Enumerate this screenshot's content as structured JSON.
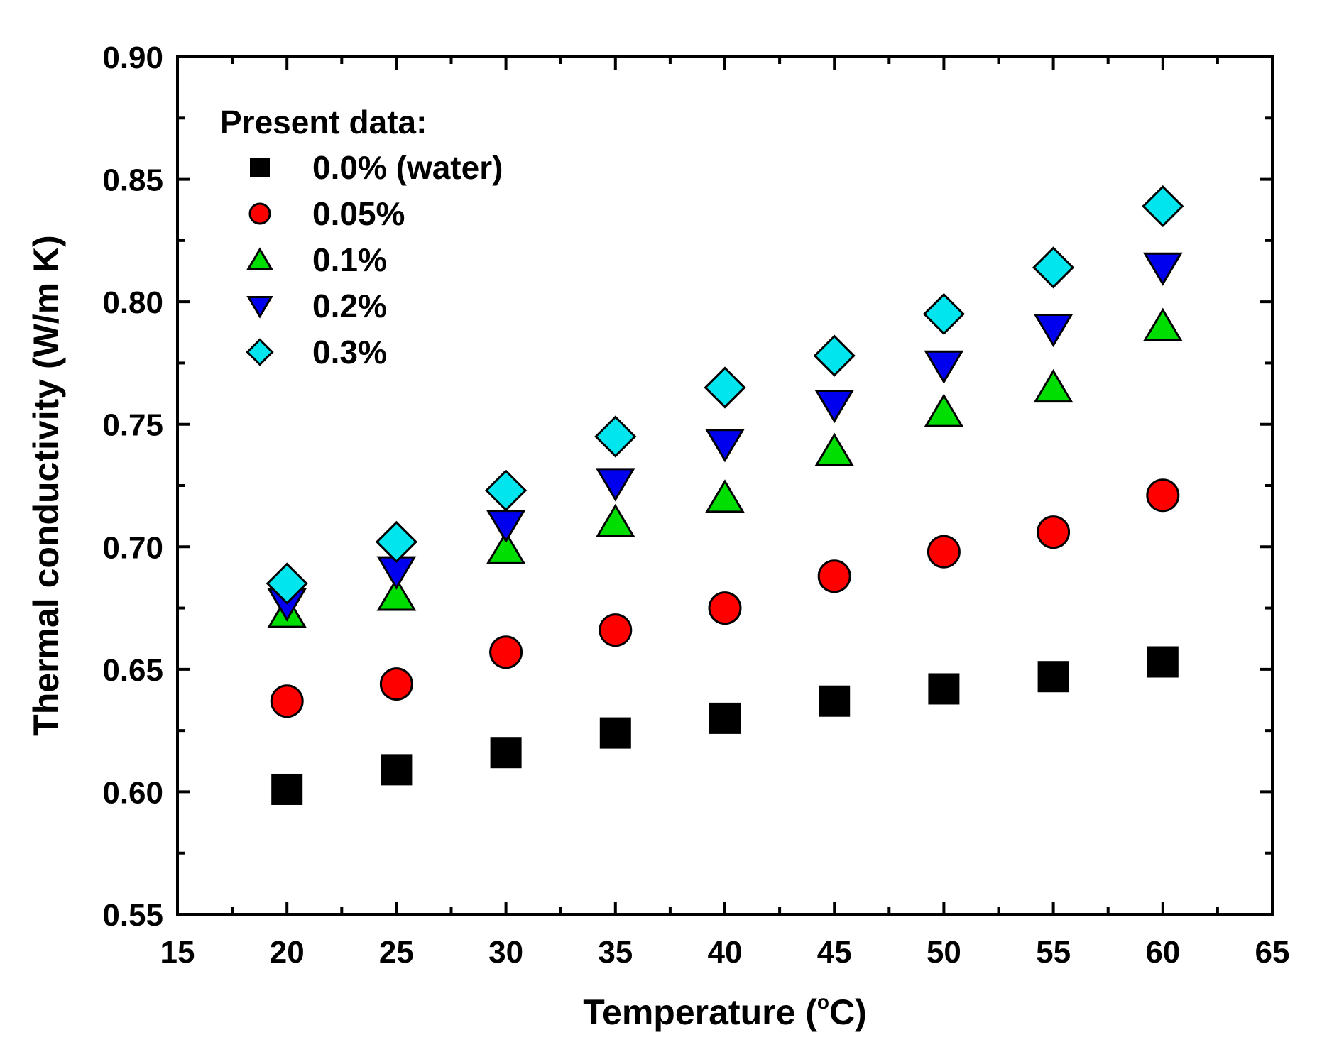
{
  "chart_data": {
    "type": "scatter",
    "title": "",
    "xlabel": "Temperature (°C)",
    "xlabel_parts": {
      "pre": "Temperature (",
      "sup": "o",
      "post": "C)"
    },
    "ylabel": "Thermal conductivity (W/m K)",
    "xlim": [
      15,
      65
    ],
    "ylim": [
      0.55,
      0.9
    ],
    "xticks": [
      15,
      20,
      25,
      30,
      35,
      40,
      45,
      50,
      55,
      60,
      65
    ],
    "xtick_labels": [
      "15",
      "20",
      "25",
      "30",
      "35",
      "40",
      "45",
      "50",
      "55",
      "60",
      "65"
    ],
    "yticks": [
      0.55,
      0.6,
      0.65,
      0.7,
      0.75,
      0.8,
      0.85,
      0.9
    ],
    "ytick_labels": [
      "0.55",
      "0.60",
      "0.65",
      "0.70",
      "0.75",
      "0.80",
      "0.85",
      "0.90"
    ],
    "x_minor_step": 2.5,
    "y_minor_step": 0.025,
    "grid": false,
    "legend_position": "top-left",
    "legend_title": "Present data:",
    "x": [
      20,
      25,
      30,
      35,
      40,
      45,
      50,
      55,
      60
    ],
    "series": [
      {
        "name": "0.0% (water)",
        "marker": "square",
        "color": "#000000",
        "values": [
          0.601,
          0.609,
          0.616,
          0.624,
          0.63,
          0.637,
          0.642,
          0.647,
          0.653
        ]
      },
      {
        "name": "0.05%",
        "marker": "circle",
        "color": "#ff0000",
        "values": [
          0.637,
          0.644,
          0.657,
          0.666,
          0.675,
          0.688,
          0.698,
          0.706,
          0.721
        ]
      },
      {
        "name": "0.1%",
        "marker": "triangle-up",
        "color": "#00dd00",
        "values": [
          0.673,
          0.68,
          0.699,
          0.71,
          0.72,
          0.739,
          0.755,
          0.765,
          0.79
        ]
      },
      {
        "name": "0.2%",
        "marker": "triangle-down",
        "color": "#0000ee",
        "values": [
          0.677,
          0.69,
          0.709,
          0.726,
          0.742,
          0.758,
          0.774,
          0.789,
          0.814
        ]
      },
      {
        "name": "0.3%",
        "marker": "diamond",
        "color": "#00e5ee",
        "values": [
          0.685,
          0.702,
          0.723,
          0.745,
          0.765,
          0.778,
          0.795,
          0.814,
          0.839
        ]
      }
    ]
  }
}
